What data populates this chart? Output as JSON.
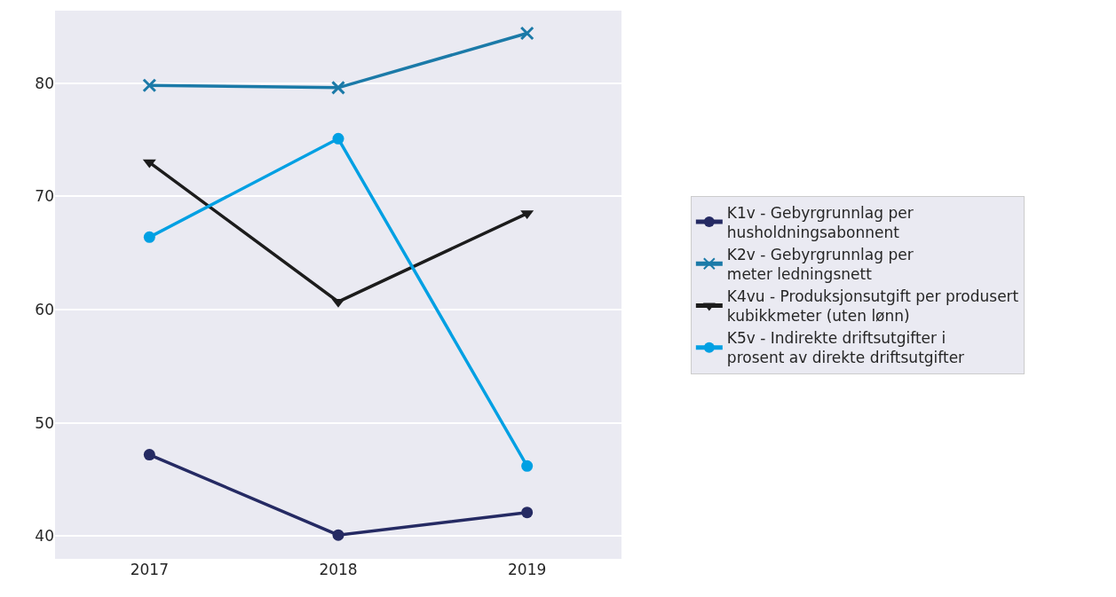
{
  "chart_data": {
    "type": "line",
    "categories": [
      "2017",
      "2018",
      "2019"
    ],
    "series": [
      {
        "name": "K1v - Gebyrgrunnlag per\nhusholdningsabonnent",
        "color": "#252a63",
        "marker": "circle",
        "values": [
          47.2,
          40.1,
          42.1
        ]
      },
      {
        "name": "K2v - Gebyrgrunnlag per\nmeter ledningsnett",
        "color": "#1b7aa8",
        "marker": "cross",
        "values": [
          79.8,
          79.6,
          84.4
        ]
      },
      {
        "name": "K4vu - Produksjonsutgift per produsert\nkubikkmeter (uten lønn)",
        "color": "#1c1c1c",
        "marker": "triangle",
        "values": [
          73.0,
          60.7,
          68.5
        ]
      },
      {
        "name": "K5v - Indirekte driftsutgifter i\nprosent av direkte driftsutgifter",
        "color": "#00a0e3",
        "marker": "circle",
        "values": [
          66.4,
          75.1,
          46.2
        ]
      }
    ],
    "ylim": [
      38,
      86.4
    ],
    "yticks": [
      40,
      50,
      60,
      70,
      80
    ],
    "grid": "y",
    "legend": "right"
  }
}
